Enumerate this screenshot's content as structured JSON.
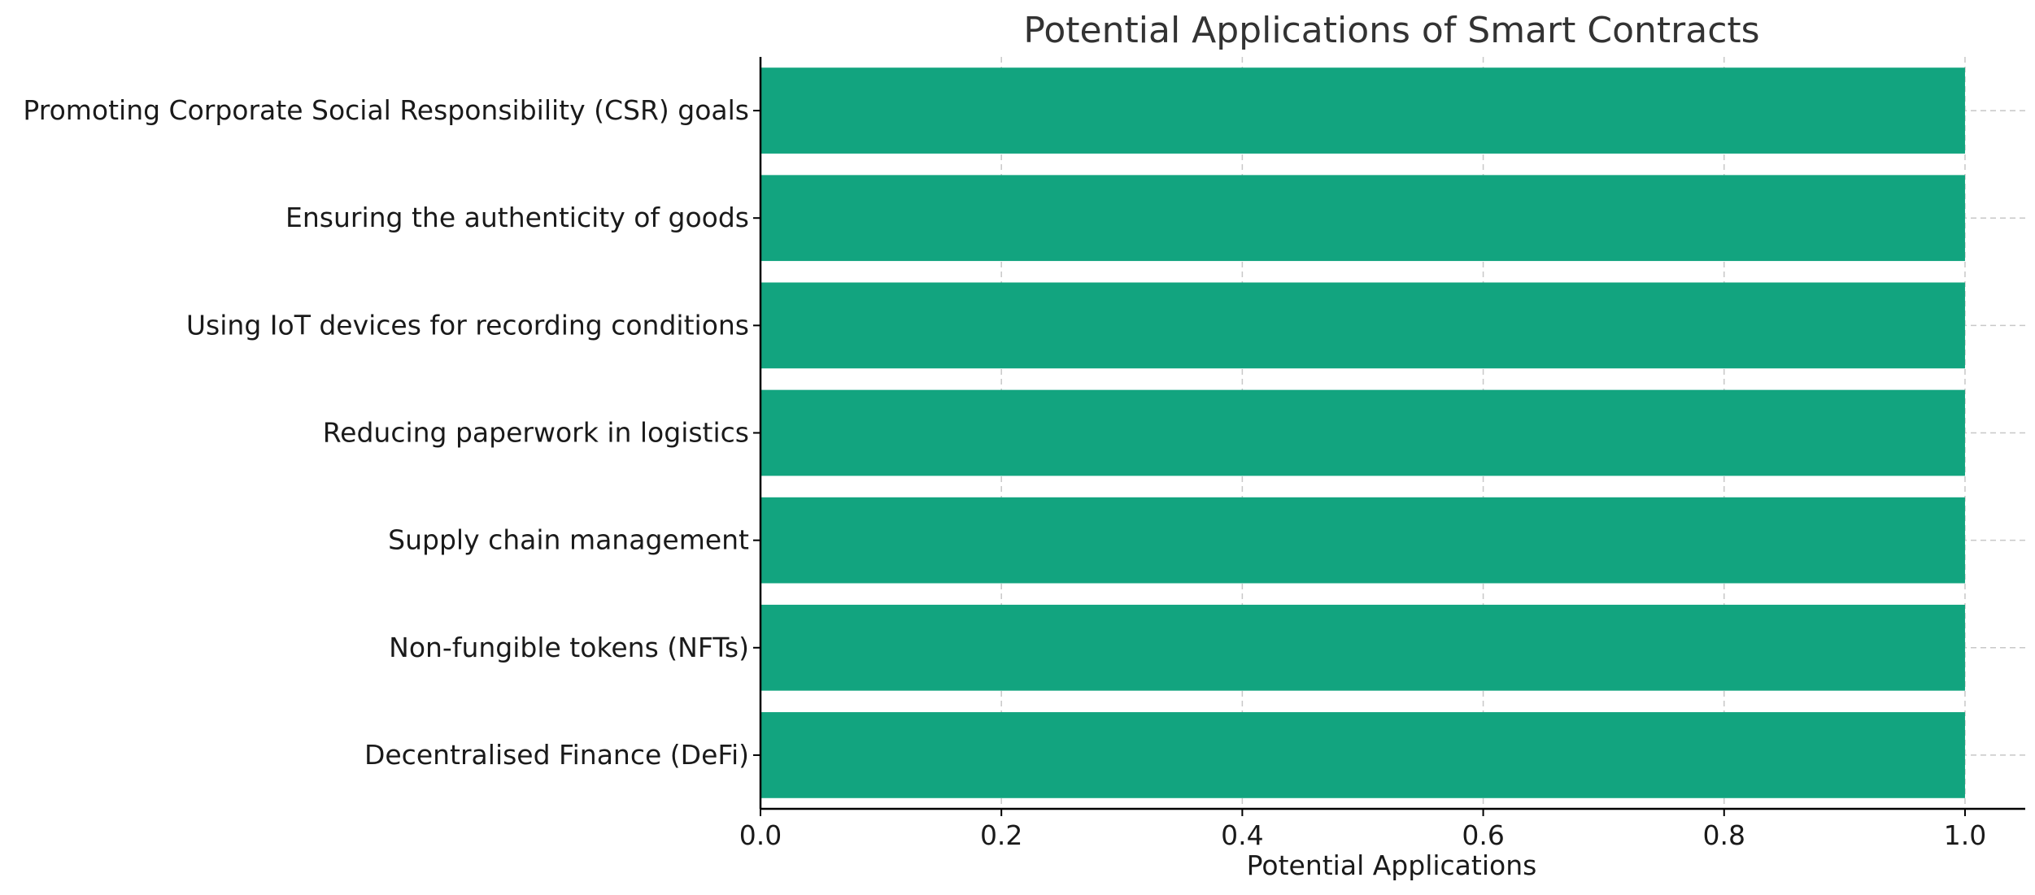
{
  "chart_data": {
    "type": "bar",
    "orientation": "horizontal",
    "title": "Potential Applications of Smart Contracts",
    "xlabel": "Potential Applications",
    "ylabel": "",
    "categories": [
      "Decentralised Finance (DeFi)",
      "Non-fungible tokens (NFTs)",
      "Supply chain management",
      "Reducing paperwork in logistics",
      "Using IoT devices for recording conditions",
      "Ensuring the authenticity of goods",
      "Promoting Corporate Social Responsibility (CSR) goals"
    ],
    "values": [
      1,
      1,
      1,
      1,
      1,
      1,
      1
    ],
    "xlim": [
      0,
      1.05
    ],
    "xticks": [
      "0.0",
      "0.2",
      "0.4",
      "0.6",
      "0.8",
      "1.0"
    ],
    "xtick_values": [
      0,
      0.2,
      0.4,
      0.6,
      0.8,
      1.0
    ],
    "grid": true,
    "bar_color": "#12a47f"
  }
}
